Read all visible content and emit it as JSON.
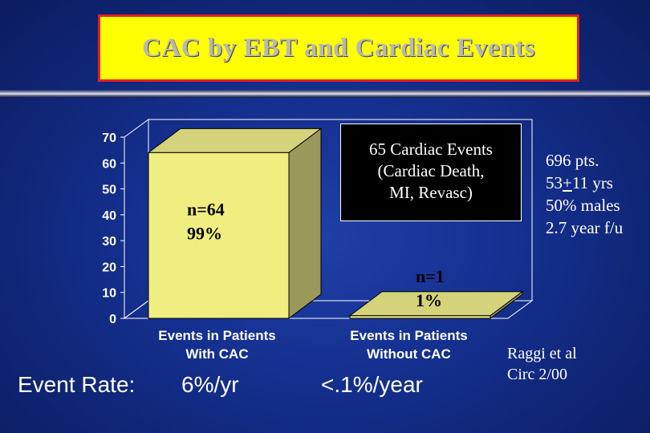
{
  "title": "CAC by EBT and Cardiac Events",
  "events_box": {
    "lines": [
      "65 Cardiac Events",
      "(Cardiac Death,",
      "MI, Revasc)"
    ]
  },
  "patients": {
    "line1": "696 pts.",
    "line2_a": "53",
    "line2_b": "+",
    "line2_c": "11 yrs",
    "line3": "50% males",
    "line4": "2.7 year f/u"
  },
  "reference": {
    "line1": "Raggi et al",
    "line2": "Circ 2/00"
  },
  "event_rate": {
    "label": "Event Rate:",
    "with_cac": "6%/yr",
    "without_cac": "<.1%/year"
  },
  "colors": {
    "bar_front": "#f0ee80",
    "bar_top": "#d4d27a",
    "bar_side": "#9a985a",
    "title_bg": "#ffff00",
    "title_border": "#e0202a"
  },
  "chart_data": {
    "type": "bar",
    "categories": [
      [
        "Events in Patients",
        "With CAC"
      ],
      [
        "Events in Patients",
        "Without CAC"
      ]
    ],
    "values": [
      64,
      1
    ],
    "bar_labels": [
      [
        "n=64",
        "99%"
      ],
      [
        "n=1",
        "1%"
      ]
    ],
    "yticks": [
      0,
      10,
      20,
      30,
      40,
      50,
      60,
      70
    ],
    "ylim": [
      0,
      70
    ],
    "title": "",
    "xlabel": "",
    "ylabel": ""
  }
}
